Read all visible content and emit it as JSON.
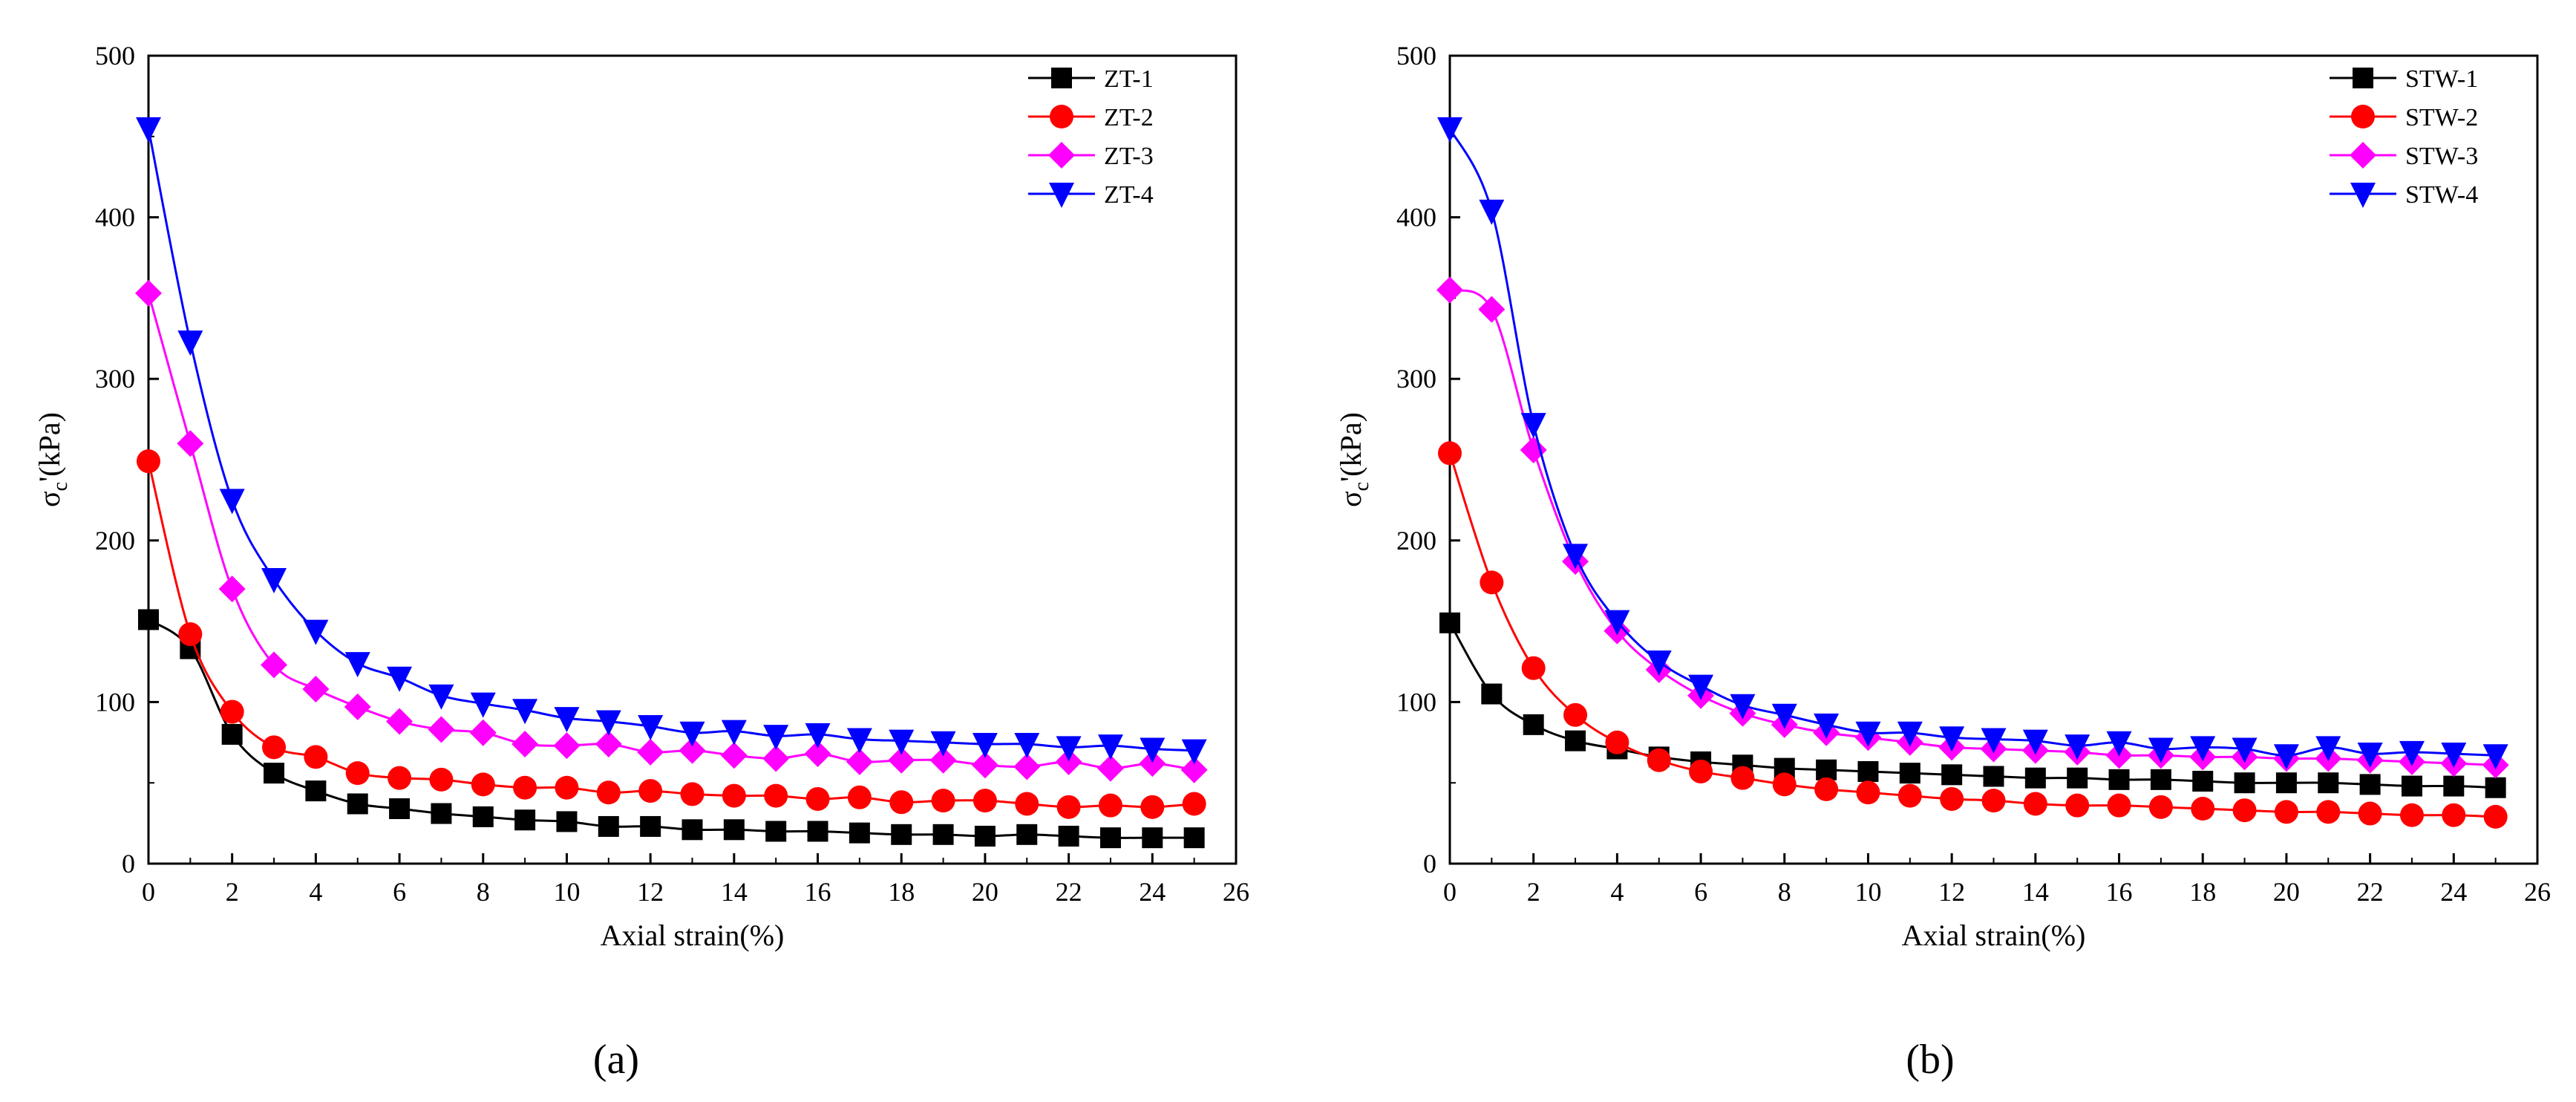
{
  "chart_data": [
    {
      "type": "line",
      "panel_label": "(a)",
      "xlabel": "Axial strain(%)",
      "ylabel": "σc'(kPa)",
      "ylabel_base": "σ",
      "ylabel_sub": "c",
      "ylabel_rest": "'(kPa)",
      "xlim": [
        0,
        26
      ],
      "ylim": [
        0,
        500
      ],
      "xticks": [
        0,
        2,
        4,
        6,
        8,
        10,
        12,
        14,
        16,
        18,
        20,
        22,
        24,
        26
      ],
      "yticks": [
        0,
        100,
        200,
        300,
        400,
        500
      ],
      "legend_position": "top-right",
      "series": [
        {
          "name": "ZT-1",
          "color": "#000000",
          "marker": "square",
          "x": [
            0,
            1,
            2,
            3,
            4,
            5,
            6,
            7,
            8,
            9,
            10,
            11,
            12,
            13,
            14,
            15,
            16,
            17,
            18,
            19,
            20,
            21,
            22,
            23,
            24,
            25
          ],
          "y": [
            151,
            133,
            80,
            56,
            45,
            37,
            34,
            31,
            29,
            27,
            26,
            23,
            23,
            21,
            21,
            20,
            20,
            19,
            18,
            18,
            17,
            18,
            17,
            16,
            16,
            16
          ]
        },
        {
          "name": "ZT-2",
          "color": "#ff0000",
          "marker": "circle",
          "x": [
            0,
            1,
            2,
            3,
            4,
            5,
            6,
            7,
            8,
            9,
            10,
            11,
            12,
            13,
            14,
            15,
            16,
            17,
            18,
            19,
            20,
            21,
            22,
            23,
            24,
            25
          ],
          "y": [
            249,
            142,
            94,
            72,
            66,
            56,
            53,
            52,
            49,
            47,
            47,
            44,
            45,
            43,
            42,
            42,
            40,
            41,
            38,
            39,
            39,
            37,
            35,
            36,
            35,
            37
          ]
        },
        {
          "name": "ZT-3",
          "color": "#ff00ff",
          "marker": "diamond",
          "x": [
            0,
            1,
            2,
            3,
            4,
            5,
            6,
            7,
            8,
            9,
            10,
            11,
            12,
            13,
            14,
            15,
            16,
            17,
            18,
            19,
            20,
            21,
            22,
            23,
            24,
            25
          ],
          "y": [
            353,
            260,
            170,
            123,
            108,
            97,
            88,
            83,
            81,
            74,
            73,
            74,
            69,
            70,
            67,
            65,
            68,
            63,
            64,
            64,
            61,
            60,
            63,
            59,
            62,
            58
          ]
        },
        {
          "name": "ZT-4",
          "color": "#0000ff",
          "marker": "triangle-down",
          "x": [
            0,
            1,
            2,
            3,
            4,
            5,
            6,
            7,
            8,
            9,
            10,
            11,
            12,
            13,
            14,
            15,
            16,
            17,
            18,
            19,
            20,
            21,
            22,
            23,
            24,
            25
          ],
          "y": [
            455,
            323,
            225,
            176,
            144,
            124,
            115,
            104,
            99,
            95,
            90,
            88,
            85,
            81,
            82,
            79,
            80,
            77,
            76,
            75,
            74,
            74,
            72,
            73,
            71,
            70
          ]
        }
      ]
    },
    {
      "type": "line",
      "panel_label": "(b)",
      "xlabel": "Axial strain(%)",
      "ylabel": "σc'(kPa)",
      "ylabel_base": "σ",
      "ylabel_sub": "c",
      "ylabel_rest": "'(kPa)",
      "xlim": [
        0,
        26
      ],
      "ylim": [
        0,
        500
      ],
      "xticks": [
        0,
        2,
        4,
        6,
        8,
        10,
        12,
        14,
        16,
        18,
        20,
        22,
        24,
        26
      ],
      "yticks": [
        0,
        100,
        200,
        300,
        400,
        500
      ],
      "legend_position": "top-right",
      "series": [
        {
          "name": "STW-1",
          "color": "#000000",
          "marker": "square",
          "x": [
            0,
            1,
            2,
            3,
            4,
            5,
            6,
            7,
            8,
            9,
            10,
            11,
            12,
            13,
            14,
            15,
            16,
            17,
            18,
            19,
            20,
            21,
            22,
            23,
            24,
            25
          ],
          "y": [
            149,
            105,
            86,
            76,
            71,
            66,
            63,
            61,
            59,
            58,
            57,
            56,
            55,
            54,
            53,
            53,
            52,
            52,
            51,
            50,
            50,
            50,
            49,
            48,
            48,
            47
          ]
        },
        {
          "name": "STW-2",
          "color": "#ff0000",
          "marker": "circle",
          "x": [
            0,
            1,
            2,
            3,
            4,
            5,
            6,
            7,
            8,
            9,
            10,
            11,
            12,
            13,
            14,
            15,
            16,
            17,
            18,
            19,
            20,
            21,
            22,
            23,
            24,
            25
          ],
          "y": [
            254,
            174,
            121,
            92,
            75,
            64,
            57,
            53,
            49,
            46,
            44,
            42,
            40,
            39,
            37,
            36,
            36,
            35,
            34,
            33,
            32,
            32,
            31,
            30,
            30,
            29
          ]
        },
        {
          "name": "STW-3",
          "color": "#ff00ff",
          "marker": "diamond",
          "x": [
            0,
            1,
            2,
            3,
            4,
            5,
            6,
            7,
            8,
            9,
            10,
            11,
            12,
            13,
            14,
            15,
            16,
            17,
            18,
            19,
            20,
            21,
            22,
            23,
            24,
            25
          ],
          "y": [
            355,
            343,
            256,
            187,
            144,
            120,
            104,
            93,
            86,
            81,
            78,
            75,
            72,
            71,
            70,
            69,
            67,
            67,
            66,
            66,
            65,
            65,
            64,
            63,
            62,
            61
          ]
        },
        {
          "name": "STW-4",
          "color": "#0000ff",
          "marker": "triangle-down",
          "x": [
            0,
            1,
            2,
            3,
            4,
            5,
            6,
            7,
            8,
            9,
            10,
            11,
            12,
            13,
            14,
            15,
            16,
            17,
            18,
            19,
            20,
            21,
            22,
            23,
            24,
            25
          ],
          "y": [
            455,
            404,
            272,
            191,
            150,
            125,
            110,
            98,
            92,
            86,
            81,
            81,
            78,
            77,
            76,
            73,
            75,
            71,
            72,
            71,
            67,
            72,
            68,
            69,
            68,
            67
          ]
        }
      ]
    }
  ]
}
